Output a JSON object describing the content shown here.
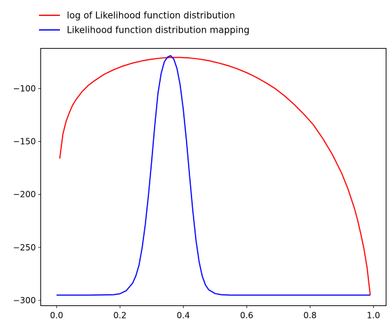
{
  "chart_data": {
    "type": "line",
    "title": "",
    "xlabel": "",
    "ylabel": "",
    "xlim": [
      -0.05,
      1.04
    ],
    "ylim": [
      -305,
      -62
    ],
    "xticks": [
      0.0,
      0.2,
      0.4,
      0.6,
      0.8,
      1.0
    ],
    "xtick_labels": [
      "0.0",
      "0.2",
      "0.4",
      "0.6",
      "0.8",
      "1.0"
    ],
    "yticks": [
      -300,
      -250,
      -200,
      -150,
      -100
    ],
    "ytick_labels": [
      "−300",
      "−250",
      "−200",
      "−150",
      "−100"
    ],
    "grid": false,
    "legend_position": "above-top-left",
    "series": [
      {
        "name": "log of Likelihood function distribution",
        "color": "#ff0000",
        "x": [
          0.01,
          0.02,
          0.03,
          0.04,
          0.05,
          0.06,
          0.08,
          0.1,
          0.12,
          0.15,
          0.18,
          0.21,
          0.24,
          0.27,
          0.3,
          0.33,
          0.36,
          0.39,
          0.42,
          0.45,
          0.48,
          0.51,
          0.54,
          0.57,
          0.6,
          0.63,
          0.66,
          0.69,
          0.72,
          0.75,
          0.78,
          0.81,
          0.84,
          0.87,
          0.9,
          0.92,
          0.94,
          0.95,
          0.96,
          0.97,
          0.98,
          0.99
        ],
        "y": [
          -166,
          -143,
          -131,
          -123,
          -116,
          -111,
          -103,
          -97,
          -92.5,
          -86.6,
          -82.2,
          -78.7,
          -75.9,
          -73.8,
          -72.2,
          -71.2,
          -70.6,
          -70.6,
          -71.1,
          -72.1,
          -73.6,
          -75.7,
          -78.2,
          -81.3,
          -85,
          -89.3,
          -94.4,
          -100,
          -107,
          -115,
          -124,
          -134,
          -147,
          -162,
          -180,
          -195,
          -213,
          -224,
          -237,
          -251,
          -269,
          -295
        ]
      },
      {
        "name": "Likelihood function distribution mapping",
        "color": "#0000ff",
        "x": [
          0.0,
          0.1,
          0.18,
          0.2,
          0.22,
          0.24,
          0.25,
          0.26,
          0.27,
          0.28,
          0.29,
          0.3,
          0.31,
          0.32,
          0.33,
          0.34,
          0.35,
          0.36,
          0.37,
          0.38,
          0.39,
          0.4,
          0.41,
          0.42,
          0.43,
          0.44,
          0.45,
          0.46,
          0.47,
          0.48,
          0.5,
          0.52,
          0.55,
          0.6,
          0.8,
          0.99
        ],
        "y": [
          -295,
          -295,
          -294.6,
          -293.7,
          -290.8,
          -283.7,
          -277,
          -267,
          -250.5,
          -228.3,
          -200.6,
          -168.8,
          -134.8,
          -104.5,
          -85.8,
          -74.8,
          -70.3,
          -68.9,
          -72.2,
          -81,
          -96.5,
          -119.8,
          -149.5,
          -183,
          -215.3,
          -243.1,
          -263.7,
          -277.3,
          -285.5,
          -289.9,
          -293.5,
          -294.6,
          -295,
          -295,
          -295,
          -295
        ]
      }
    ]
  }
}
